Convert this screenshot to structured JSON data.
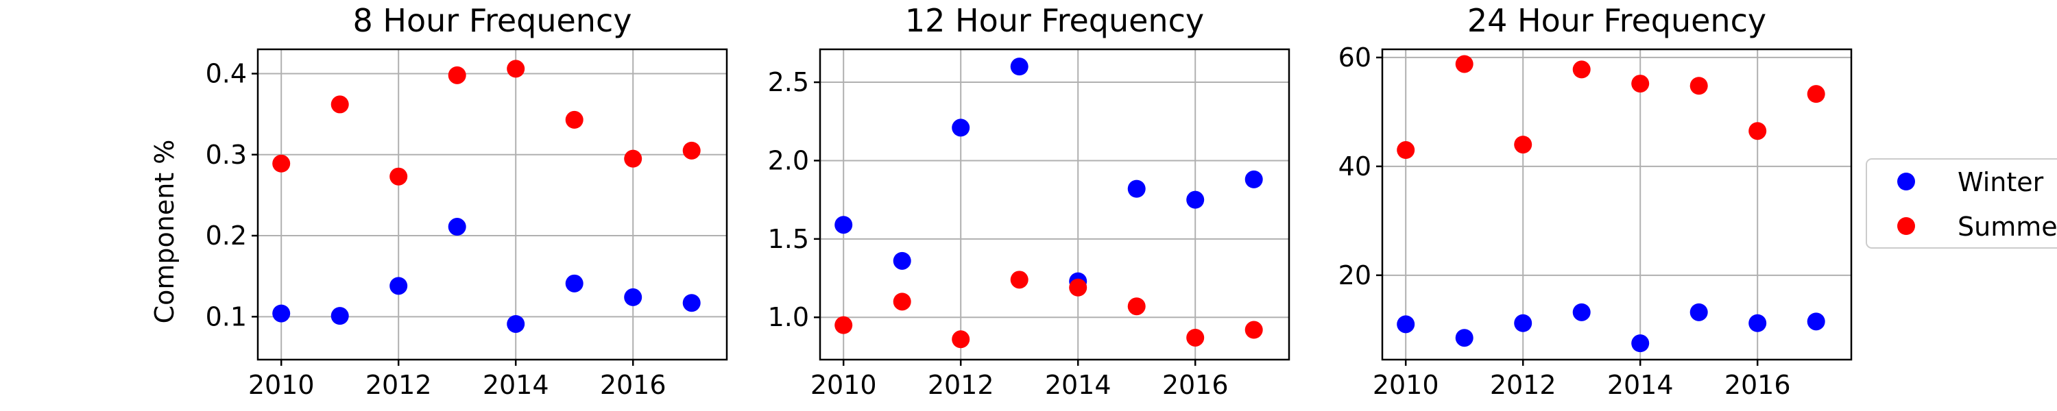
{
  "figure": {
    "y_axis_label": "Component %",
    "legend": [
      "Winter",
      "Summer"
    ]
  },
  "colors": {
    "Winter": "#0000ff",
    "Summer": "#ff0000"
  },
  "chart_data": [
    {
      "type": "scatter",
      "title": "8 Hour Frequency",
      "ylabel": "Component %",
      "xlim": [
        2009.6,
        2017.6
      ],
      "ylim": [
        0.047,
        0.43
      ],
      "xticks": [
        2010,
        2012,
        2014,
        2016
      ],
      "yticks": [
        0.1,
        0.2,
        0.3,
        0.4
      ],
      "ytick_labels": [
        "0.1",
        "0.2",
        "0.3",
        "0.4"
      ],
      "grid": true,
      "x": [
        2010,
        2011,
        2012,
        2013,
        2014,
        2015,
        2016,
        2017
      ],
      "series": [
        {
          "name": "Winter",
          "values": [
            0.104,
            0.101,
            0.138,
            0.211,
            0.091,
            0.141,
            0.124,
            0.117
          ]
        },
        {
          "name": "Summer",
          "values": [
            0.289,
            0.362,
            0.273,
            0.398,
            0.406,
            0.343,
            0.295,
            0.305
          ]
        }
      ]
    },
    {
      "type": "scatter",
      "title": "12 Hour Frequency",
      "ylabel": "",
      "xlim": [
        2009.6,
        2017.6
      ],
      "ylim": [
        0.73,
        2.71
      ],
      "xticks": [
        2010,
        2012,
        2014,
        2016
      ],
      "yticks": [
        1.0,
        1.5,
        2.0,
        2.5
      ],
      "ytick_labels": [
        "1.0",
        "1.5",
        "2.0",
        "2.5"
      ],
      "grid": true,
      "x": [
        2010,
        2011,
        2012,
        2013,
        2014,
        2015,
        2016,
        2017
      ],
      "series": [
        {
          "name": "Winter",
          "values": [
            1.59,
            1.36,
            2.21,
            2.6,
            1.23,
            1.82,
            1.75,
            1.88
          ]
        },
        {
          "name": "Summer",
          "values": [
            0.95,
            1.1,
            0.86,
            1.24,
            1.19,
            1.07,
            0.87,
            0.92
          ]
        }
      ]
    },
    {
      "type": "scatter",
      "title": "24 Hour Frequency",
      "ylabel": "",
      "xlim": [
        2009.6,
        2017.6
      ],
      "ylim": [
        4.5,
        61.5
      ],
      "xticks": [
        2010,
        2012,
        2014,
        2016
      ],
      "yticks": [
        20,
        40,
        60
      ],
      "ytick_labels": [
        "20",
        "40",
        "60"
      ],
      "grid": true,
      "x": [
        2010,
        2011,
        2012,
        2013,
        2014,
        2015,
        2016,
        2017
      ],
      "series": [
        {
          "name": "Winter",
          "values": [
            11.0,
            8.5,
            11.2,
            13.2,
            7.5,
            13.2,
            11.2,
            11.5
          ]
        },
        {
          "name": "Summer",
          "values": [
            43.0,
            58.8,
            44.0,
            57.8,
            55.2,
            54.8,
            46.5,
            53.3
          ]
        }
      ]
    }
  ]
}
